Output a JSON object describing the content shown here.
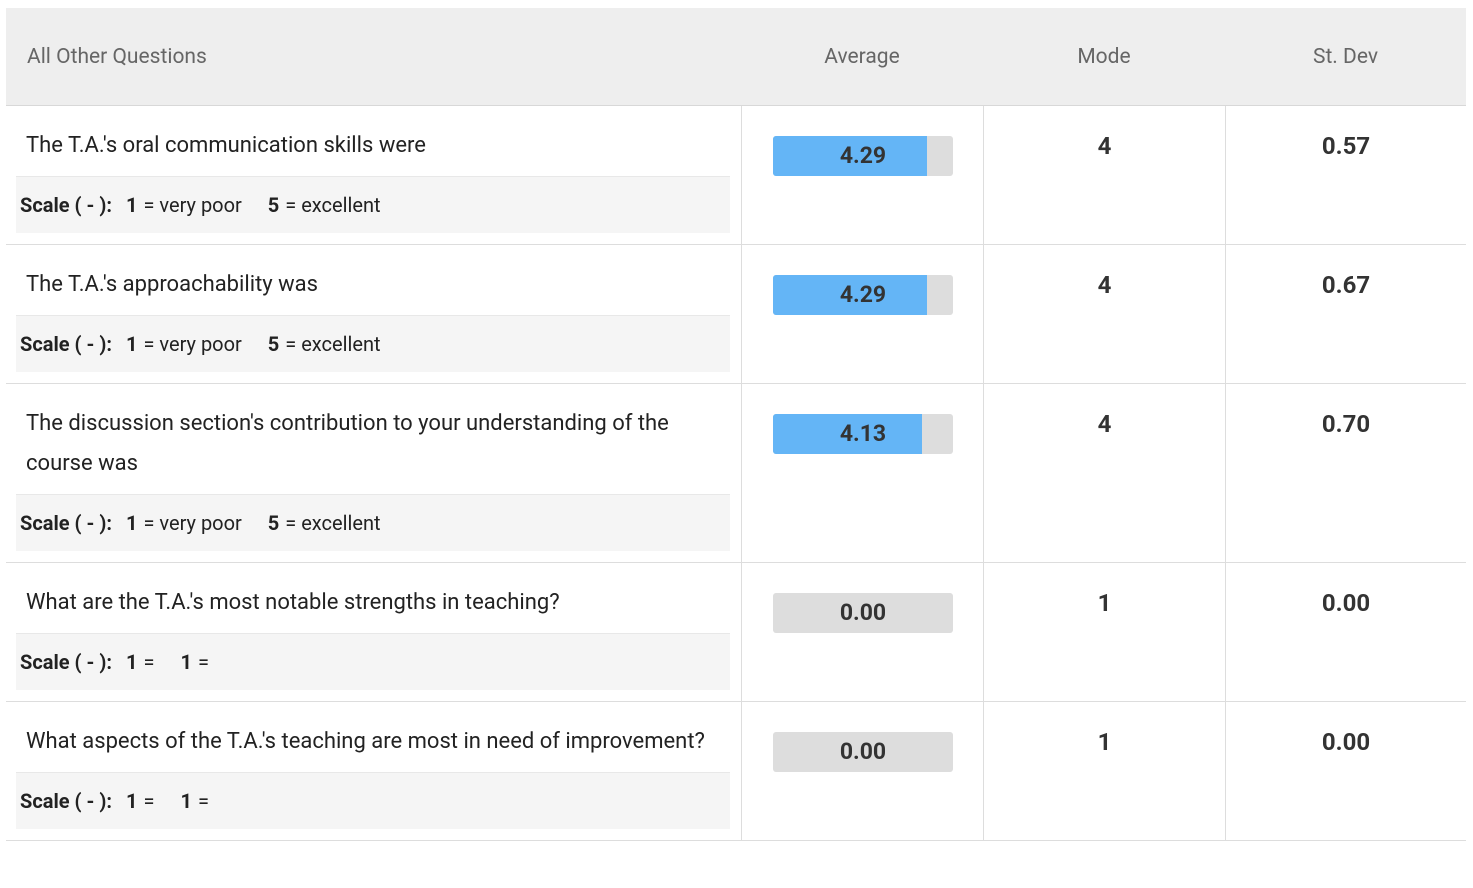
{
  "header": {
    "columns": [
      "All Other Questions",
      "Average",
      "Mode",
      "St. Dev"
    ]
  },
  "rows": [
    {
      "question": "The T.A.'s oral communication skills were",
      "scale_label": "Scale ( - ):",
      "low": 1,
      "low_text": "= very poor",
      "high": 5,
      "high_text": "= excellent",
      "average": {
        "value": 4.29,
        "label": "4.29"
      },
      "mode": 4,
      "stdev": "0.57"
    },
    {
      "question": "The T.A.'s approachability was",
      "scale_label": "Scale ( - ):",
      "low": 1,
      "low_text": "= very poor",
      "high": 5,
      "high_text": "= excellent",
      "average": {
        "value": 4.29,
        "label": "4.29"
      },
      "mode": 4,
      "stdev": "0.67"
    },
    {
      "question": "The discussion section's contribution to your understanding of the course was",
      "scale_label": "Scale ( - ):",
      "low": 1,
      "low_text": "= very poor",
      "high": 5,
      "high_text": "= excellent",
      "average": {
        "value": 4.13,
        "label": "4.13"
      },
      "mode": 4,
      "stdev": "0.70"
    },
    {
      "question": "What are the T.A.'s most notable strengths in teaching?",
      "scale_label": "Scale ( - ):",
      "low": 1,
      "low_text": "=",
      "high": 1,
      "high_text": "=",
      "average": {
        "value": 0,
        "label": "0.00"
      },
      "mode": 1,
      "stdev": "0.00"
    },
    {
      "question": "What aspects of the T.A.'s teaching are most in need of improvement?",
      "scale_label": "Scale ( - ):",
      "low": 1,
      "low_text": "=",
      "high": 1,
      "high_text": "=",
      "average": {
        "value": 0,
        "label": "0.00"
      },
      "mode": 1,
      "stdev": "0.00"
    }
  ]
}
